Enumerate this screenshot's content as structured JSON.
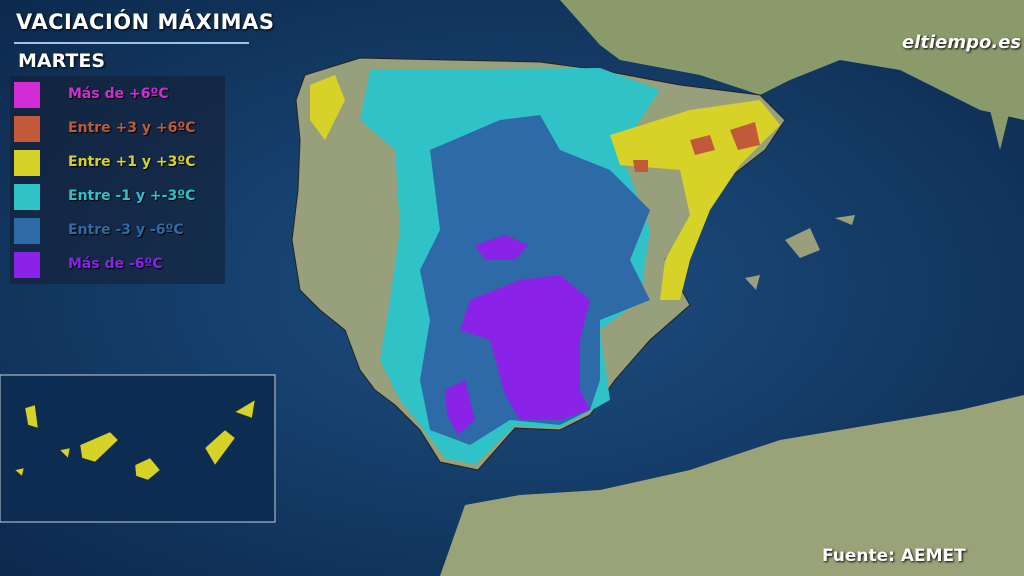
{
  "header": {
    "title": "VACIACIÓN MÁXIMAS",
    "subtitle": "MARTES"
  },
  "legend": [
    {
      "label": "Más de +6ºC",
      "color": "#d22cd6"
    },
    {
      "label": "Entre +3 y +6ºC",
      "color": "#c25a3a"
    },
    {
      "label": "Entre +1 y +3ºC",
      "color": "#d6d228"
    },
    {
      "label": "Entre -1 y +-3ºC",
      "color": "#2fc3c8"
    },
    {
      "label": "Entre -3 y -6ºC",
      "color": "#2f6aa8"
    },
    {
      "label": "Más de -6ºC",
      "color": "#8a22e8"
    }
  ],
  "logo": "eltiempo.es",
  "source": "Fuente: AEMET"
}
